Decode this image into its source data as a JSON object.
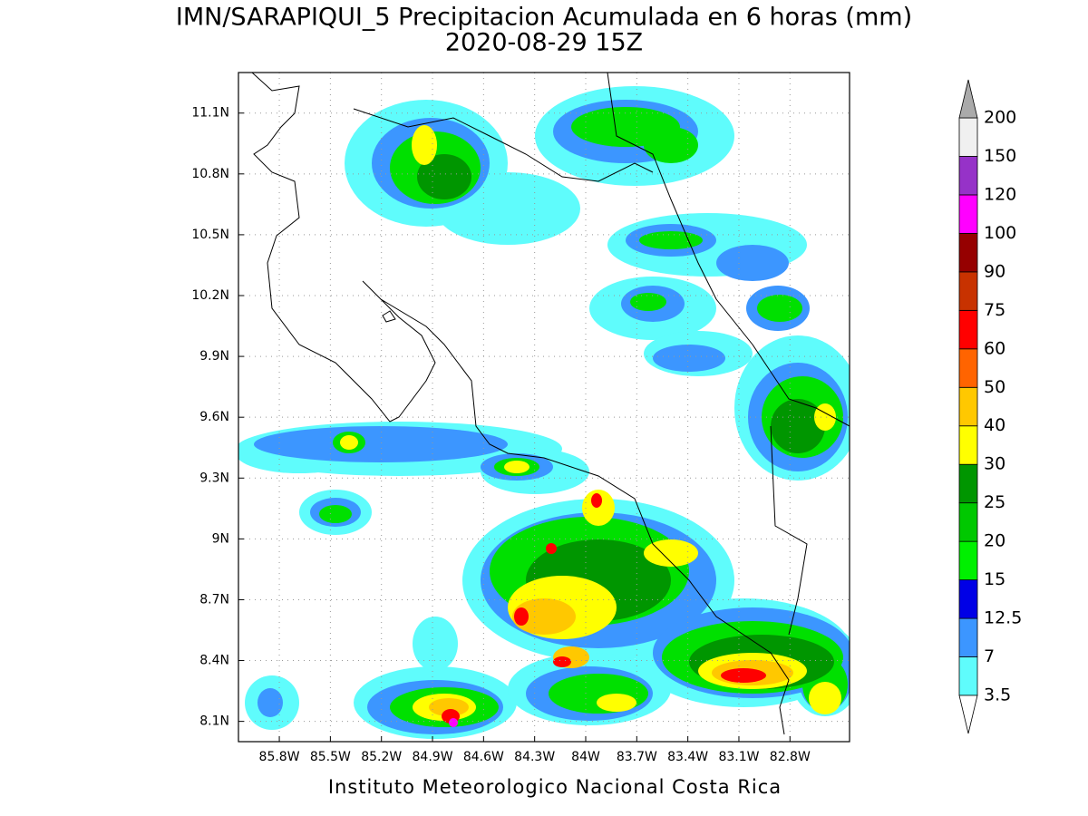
{
  "title": [
    "IMN/SARAPIQUI_5 Precipitacion Acumulada en 6 horas (mm)",
    "2020-08-29 15Z"
  ],
  "map": {
    "xlim": [
      -86.04,
      -82.45
    ],
    "ylim": [
      8.0,
      11.3
    ],
    "xticks": [
      {
        "value": -85.8,
        "label": "85.8W"
      },
      {
        "value": -85.5,
        "label": "85.5W"
      },
      {
        "value": -85.2,
        "label": "85.2W"
      },
      {
        "value": -84.9,
        "label": "84.9W"
      },
      {
        "value": -84.6,
        "label": "84.6W"
      },
      {
        "value": -84.3,
        "label": "84.3W"
      },
      {
        "value": -84.0,
        "label": "84W"
      },
      {
        "value": -83.7,
        "label": "83.7W"
      },
      {
        "value": -83.4,
        "label": "83.4W"
      },
      {
        "value": -83.1,
        "label": "83.1W"
      },
      {
        "value": -82.8,
        "label": "82.8W"
      }
    ],
    "yticks": [
      {
        "value": 8.1,
        "label": "8.1N"
      },
      {
        "value": 8.4,
        "label": "8.4N"
      },
      {
        "value": 8.7,
        "label": "8.7N"
      },
      {
        "value": 9.0,
        "label": "9N"
      },
      {
        "value": 9.3,
        "label": "9.3N"
      },
      {
        "value": 9.6,
        "label": "9.6N"
      },
      {
        "value": 9.9,
        "label": "9.9N"
      },
      {
        "value": 10.2,
        "label": "10.2N"
      },
      {
        "value": 10.5,
        "label": "10.5N"
      },
      {
        "value": 10.8,
        "label": "10.8N"
      },
      {
        "value": 11.1,
        "label": "11.1N"
      }
    ],
    "grid": true
  },
  "colorbar": {
    "levels": [
      3.5,
      7,
      12.5,
      15,
      20,
      25,
      30,
      40,
      50,
      60,
      75,
      90,
      100,
      120,
      150,
      200
    ],
    "colors": [
      "#5ffcfc",
      "#3c96ff",
      "#0000e6",
      "#00f000",
      "#00c800",
      "#009600",
      "#ffff00",
      "#ffc800",
      "#ff6400",
      "#ff0000",
      "#c83200",
      "#960000",
      "#ff00ff",
      "#9632c8",
      "#f0f0f0"
    ],
    "under_color": "#ffffff",
    "over_color": "#aaaaaa"
  },
  "footer": "Instituto Meteorologico Nacional Costa Rica"
}
